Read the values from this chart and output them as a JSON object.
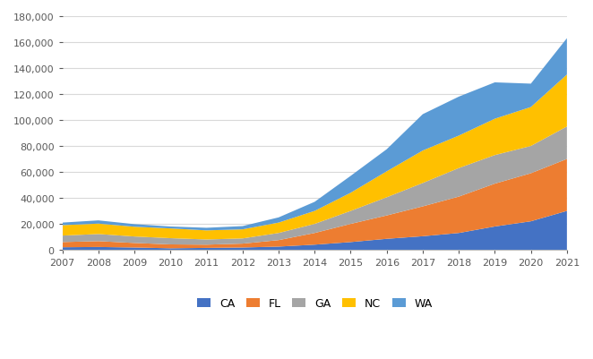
{
  "years": [
    2007,
    2008,
    2009,
    2010,
    2011,
    2012,
    2013,
    2014,
    2015,
    2016,
    2017,
    2018,
    2019,
    2020,
    2021
  ],
  "CA": [
    2000,
    2200,
    1800,
    1200,
    1500,
    1800,
    2500,
    4000,
    6000,
    8500,
    10500,
    13000,
    18000,
    22000,
    30000
  ],
  "FL": [
    4000,
    4500,
    3500,
    3000,
    2500,
    3000,
    5000,
    9000,
    14000,
    18000,
    23000,
    28000,
    33000,
    37000,
    40000
  ],
  "GA": [
    5000,
    5500,
    5000,
    4800,
    4000,
    4000,
    5500,
    7000,
    10000,
    14000,
    18000,
    22000,
    22000,
    21000,
    25000
  ],
  "NC": [
    8000,
    8000,
    7500,
    7500,
    7000,
    7000,
    8000,
    10000,
    14000,
    20000,
    25000,
    25000,
    28000,
    30000,
    40000
  ],
  "WA": [
    2000,
    2500,
    2000,
    1500,
    2000,
    2500,
    4000,
    7000,
    13000,
    17000,
    28000,
    30000,
    28000,
    18000,
    28000
  ],
  "colors": {
    "CA": "#4472c4",
    "FL": "#ed7d31",
    "GA": "#a5a5a5",
    "NC": "#ffc000",
    "WA": "#5b9bd5"
  },
  "ylim": [
    0,
    180000
  ],
  "yticks": [
    0,
    20000,
    40000,
    60000,
    80000,
    100000,
    120000,
    140000,
    160000,
    180000
  ],
  "background_color": "#ffffff",
  "grid_color": "#d9d9d9"
}
